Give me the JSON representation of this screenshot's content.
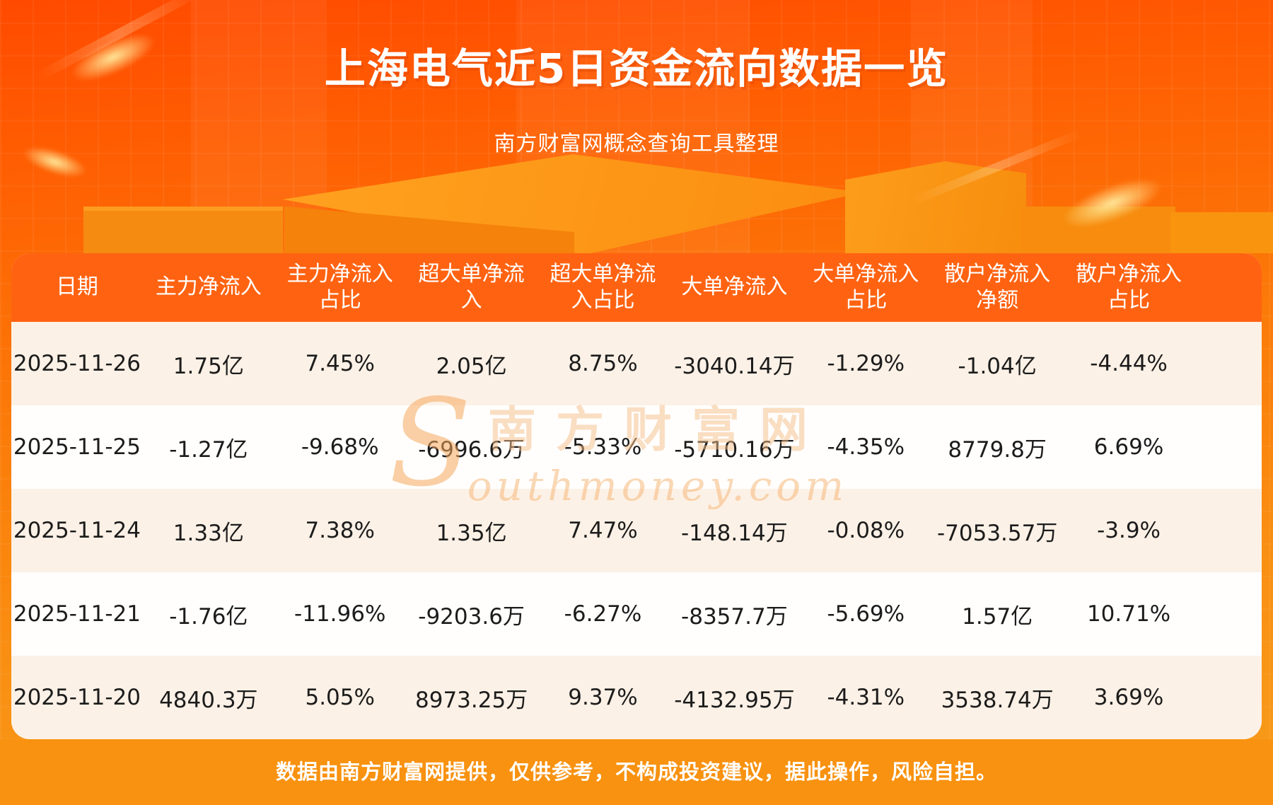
{
  "page": {
    "title": "上海电气近5日资金流向数据一览",
    "subtitle": "南方财富网概念查询工具整理",
    "footer_note": "数据由南方财富网提供，仅供参考，不构成投资建议，据此操作，风险自担。"
  },
  "watermark": {
    "initial": "S",
    "text_cn": "南方财富网",
    "text_en": "outhmoney.com"
  },
  "colors": {
    "bg_top": "#ff4a00",
    "bg_bottom": "#f89c1b",
    "table_header_bg": "#ff6312",
    "row_cream": "#fcf1e6",
    "row_white": "#fffefd",
    "footer_band": "#f89210",
    "header_text": "#ffffff",
    "cell_text": "#1c1c1c",
    "watermark": "#f5be87"
  },
  "chart_data": {
    "type": "table",
    "title": "上海电气近5日资金流向数据一览",
    "columns": [
      "日期",
      "主力净流入",
      "主力净流入\n占比",
      "超大单净流\n入",
      "超大单净流\n入占比",
      "大单净流入",
      "大单净流入\n占比",
      "散户净流入\n净额",
      "散户净流入\n占比"
    ],
    "rows": [
      [
        "2025-11-26",
        "1.75亿",
        "7.45%",
        "2.05亿",
        "8.75%",
        "-3040.14万",
        "-1.29%",
        "-1.04亿",
        "-4.44%"
      ],
      [
        "2025-11-25",
        "-1.27亿",
        "-9.68%",
        "-6996.6万",
        "-5.33%",
        "-5710.16万",
        "-4.35%",
        "8779.8万",
        "6.69%"
      ],
      [
        "2025-11-24",
        "1.33亿",
        "7.38%",
        "1.35亿",
        "7.47%",
        "-148.14万",
        "-0.08%",
        "-7053.57万",
        "-3.9%"
      ],
      [
        "2025-11-21",
        "-1.76亿",
        "-11.96%",
        "-9203.6万",
        "-6.27%",
        "-8357.7万",
        "-5.69%",
        "1.57亿",
        "10.71%"
      ],
      [
        "2025-11-20",
        "4840.3万",
        "5.05%",
        "8973.25万",
        "9.37%",
        "-4132.95万",
        "-4.31%",
        "3538.74万",
        "3.69%"
      ]
    ]
  }
}
